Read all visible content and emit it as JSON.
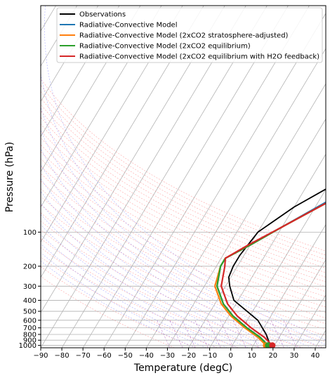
{
  "chart_data": {
    "type": "line",
    "subtype": "skew-T log-p diagram",
    "xlabel": "Temperature (degC)",
    "ylabel": "Pressure (hPa)",
    "xlim": [
      -90,
      45
    ],
    "ylim": [
      1050,
      1
    ],
    "y_scale": "log",
    "grid": true,
    "legend_position": "top-right",
    "x_ticks": [
      -90,
      -80,
      -70,
      -60,
      -50,
      -40,
      -30,
      -20,
      -10,
      0,
      10,
      20,
      30,
      40
    ],
    "x_tick_labels": [
      "−90",
      "−80",
      "−70",
      "−60",
      "−50",
      "−40",
      "−30",
      "−20",
      "−10",
      "0",
      "10",
      "20",
      "30",
      "40"
    ],
    "y_ticks": [
      100,
      200,
      300,
      400,
      500,
      600,
      700,
      800,
      900,
      1000
    ],
    "y_tick_labels": [
      "100",
      "200",
      "300",
      "400",
      "500",
      "600",
      "700",
      "800",
      "900",
      "1000"
    ],
    "background_lines": {
      "isotherm_color": "#aaaaaa",
      "dry_adiabat_color": "#ff8080",
      "moist_adiabat_color": "#6666ff",
      "mixing_ratio_color": "#9933aa"
    },
    "series": [
      {
        "name": "Observations",
        "color": "#000000",
        "points": [
          [
            18,
            1000
          ],
          [
            13,
            800
          ],
          [
            5,
            600
          ],
          [
            -12,
            400
          ],
          [
            -18,
            300
          ],
          [
            -21,
            250
          ],
          [
            -22,
            200
          ],
          [
            -22,
            160
          ],
          [
            -20,
            100
          ],
          [
            -10,
            60
          ],
          [
            20,
            20
          ],
          [
            40,
            10
          ]
        ]
      },
      {
        "name": "Radiative-Convective Model",
        "color": "#1f77b4",
        "points": [
          [
            17,
            1000
          ],
          [
            11,
            850
          ],
          [
            2,
            700
          ],
          [
            -8,
            550
          ],
          [
            -16,
            430
          ],
          [
            -24,
            300
          ],
          [
            -28,
            200
          ],
          [
            -28,
            170
          ],
          [
            -20,
            130
          ],
          [
            -10,
            90
          ],
          [
            20,
            30
          ],
          [
            50,
            10
          ]
        ]
      },
      {
        "name": "Radiative-Convective Model (2xCO2 stratosphere-adjusted)",
        "color": "#ff7f0e",
        "points": [
          [
            16,
            1000
          ],
          [
            10,
            850
          ],
          [
            1,
            700
          ],
          [
            -9,
            550
          ],
          [
            -17,
            430
          ],
          [
            -25,
            300
          ],
          [
            -28,
            200
          ],
          [
            -28,
            170
          ],
          [
            -20,
            130
          ],
          [
            -10,
            90
          ],
          [
            22,
            30
          ],
          [
            50,
            10
          ]
        ]
      },
      {
        "name": "Radiative-Convective Model (2xCO2 equilibrium)",
        "color": "#2ca02c",
        "points": [
          [
            17,
            1000
          ],
          [
            11,
            850
          ],
          [
            2,
            700
          ],
          [
            -8,
            550
          ],
          [
            -16,
            430
          ],
          [
            -24,
            300
          ],
          [
            -28,
            200
          ],
          [
            -28,
            170
          ],
          [
            -20,
            130
          ],
          [
            -10,
            90
          ],
          [
            22,
            30
          ],
          [
            50,
            10
          ]
        ]
      },
      {
        "name": "Radiative-Convective Model (2xCO2 equilibrium with H2O feedback)",
        "color": "#d62728",
        "points": [
          [
            19,
            1000
          ],
          [
            13,
            850
          ],
          [
            4,
            700
          ],
          [
            -6,
            550
          ],
          [
            -14,
            430
          ],
          [
            -22,
            300
          ],
          [
            -26,
            200
          ],
          [
            -28,
            170
          ],
          [
            -21,
            130
          ],
          [
            -10,
            90
          ],
          [
            22,
            30
          ],
          [
            50,
            10
          ]
        ]
      }
    ],
    "surface_markers": [
      {
        "series": "Radiative-Convective Model",
        "t": 17,
        "p": 1000,
        "color": "#1f77b4"
      },
      {
        "series": "Radiative-Convective Model (2xCO2 stratosphere-adjusted)",
        "t": 16,
        "p": 1000,
        "color": "#ff7f0e"
      },
      {
        "series": "Radiative-Convective Model (2xCO2 equilibrium)",
        "t": 17,
        "p": 1000,
        "color": "#2ca02c"
      },
      {
        "series": "Radiative-Convective Model (2xCO2 equilibrium with H2O feedback)",
        "t": 19,
        "p": 1000,
        "color": "#d62728"
      }
    ]
  }
}
